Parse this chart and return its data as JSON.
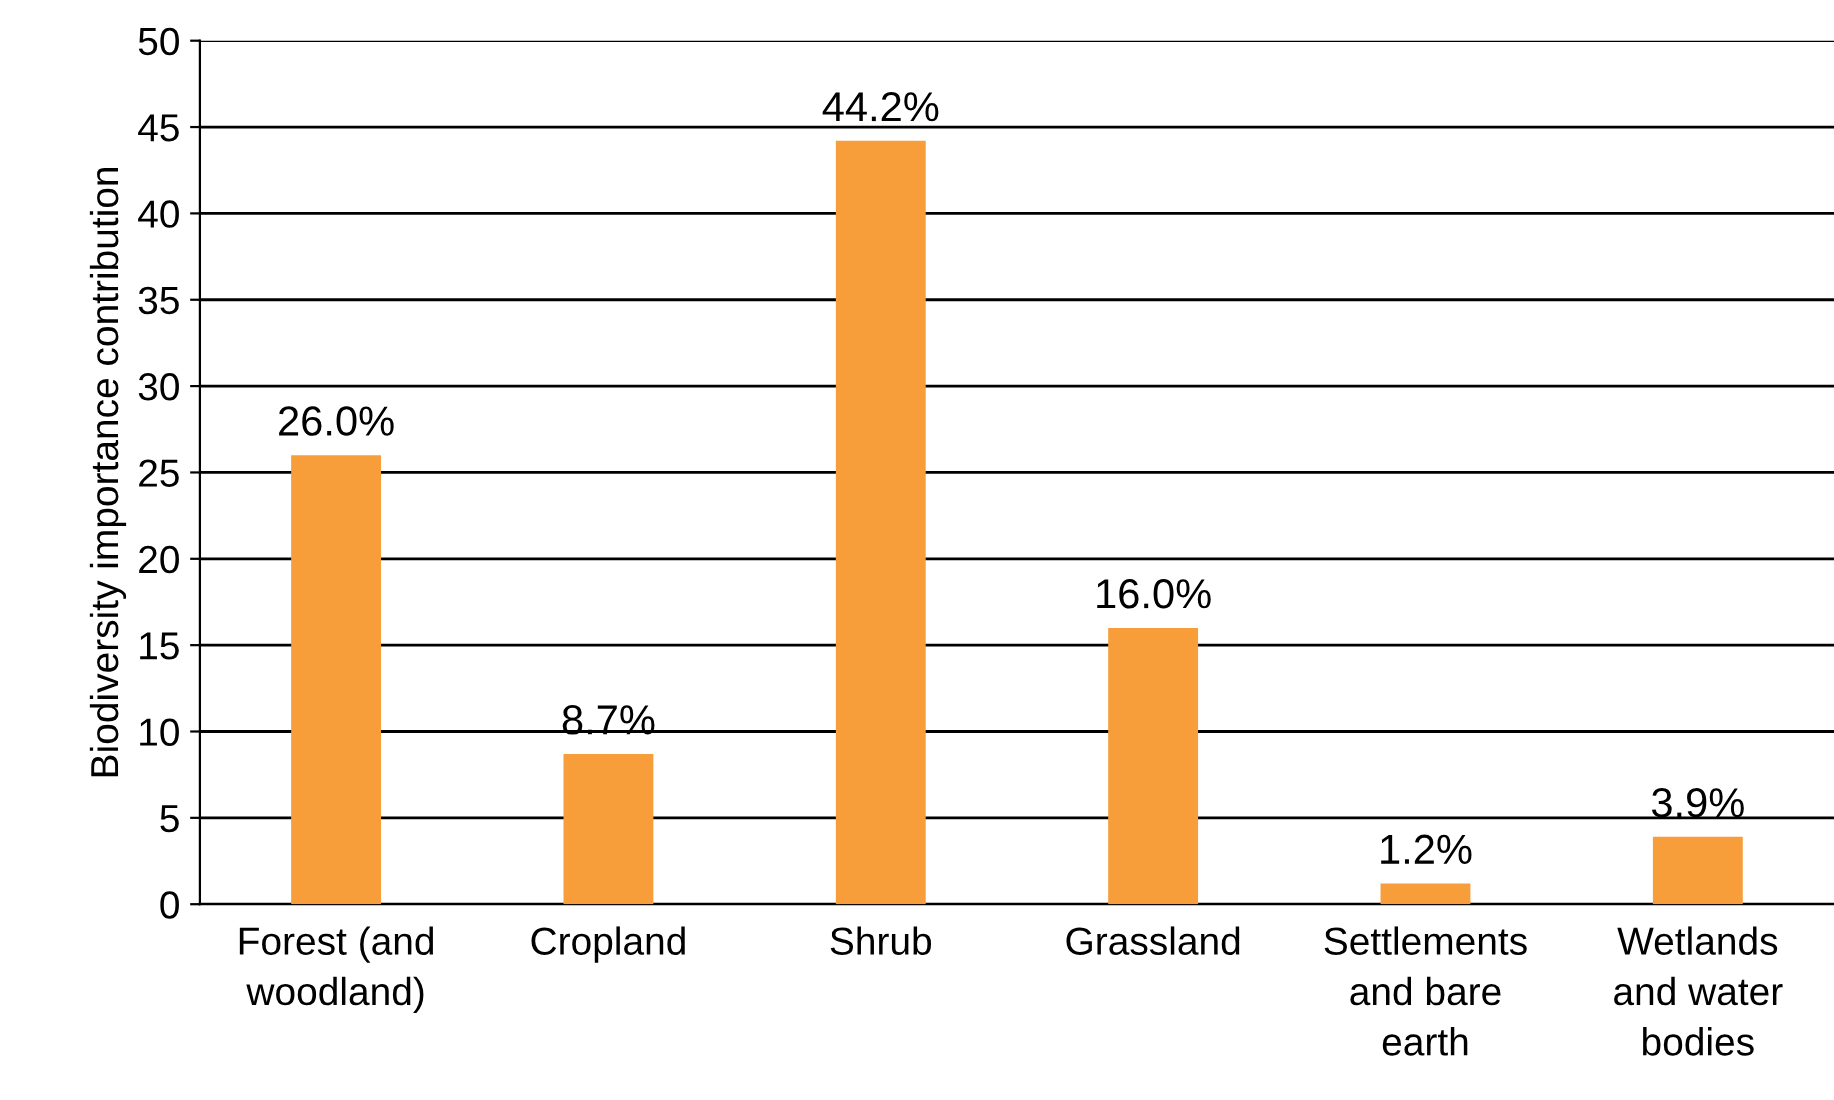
{
  "chart_data": {
    "type": "bar",
    "ylabel": "Biodiversity importance contribution",
    "categories": [
      "Forest (and\nwoodland)",
      "Cropland",
      "Shrub",
      "Grassland",
      "Settlements\nand bare\nearth",
      "Wetlands\nand water\nbodies"
    ],
    "values": [
      26.0,
      8.7,
      44.2,
      16.0,
      1.2,
      3.9
    ],
    "value_labels": [
      "26.0%",
      "8.7%",
      "44.2%",
      "16.0%",
      "1.2%",
      "3.9%"
    ],
    "color": "#f79d3a",
    "ylim": [
      0,
      50
    ],
    "yticks": [
      0,
      5,
      10,
      15,
      20,
      25,
      30,
      35,
      40,
      45,
      50
    ],
    "grid": "y",
    "legend": false
  }
}
